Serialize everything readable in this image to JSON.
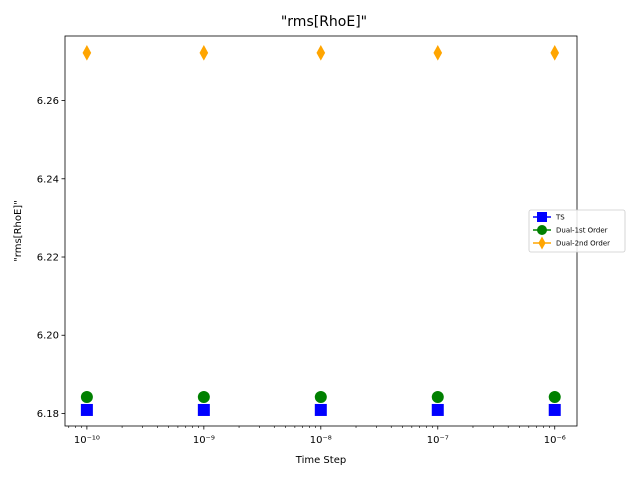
{
  "chart_data": {
    "type": "scatter",
    "title": "\"rms[RhoE]\"",
    "xlabel": "Time Step",
    "ylabel": "\"rms[RhoE]\"",
    "xscale": "log",
    "x": [
      1e-10,
      1e-09,
      1e-08,
      1e-07,
      1e-06
    ],
    "x_tick_labels": [
      "10⁻¹⁰",
      "10⁻⁹",
      "10⁻⁸",
      "10⁻⁷",
      "10⁻⁶"
    ],
    "y_ticks": [
      6.18,
      6.2,
      6.22,
      6.24,
      6.26
    ],
    "y_tick_labels": [
      "6.18",
      "6.20",
      "6.22",
      "6.24",
      "6.26"
    ],
    "xlim": [
      6.5e-11,
      1.55e-06
    ],
    "ylim": [
      6.1768,
      6.2765
    ],
    "grid": false,
    "legend_position": "right",
    "series": [
      {
        "name": "TS",
        "values": [
          6.1809,
          6.1809,
          6.1809,
          6.1809,
          6.1809
        ],
        "color": "#0000ff",
        "marker": "square"
      },
      {
        "name": "Dual-1st Order",
        "values": [
          6.1842,
          6.1842,
          6.1842,
          6.1842,
          6.1842
        ],
        "color": "#008000",
        "marker": "circle"
      },
      {
        "name": "Dual-2nd Order",
        "values": [
          6.2722,
          6.2722,
          6.2722,
          6.2722,
          6.2722
        ],
        "color": "#ffa500",
        "marker": "diamond"
      }
    ]
  }
}
